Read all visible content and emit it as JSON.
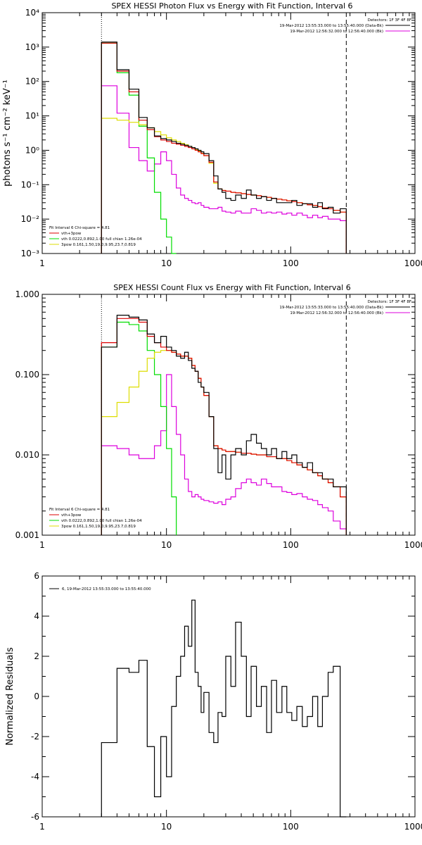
{
  "colors": {
    "data": "#000000",
    "vth_plus_3pow": "#dd0000",
    "vth": "#00dd00",
    "3pow": "#dddd00",
    "bk": "#dd00dd"
  },
  "chart_data": [
    {
      "type": "line",
      "title": "SPEX HESSI Photon Flux vs Energy with Fit Function, Interval 6",
      "ylabel": "photons s⁻¹ cm⁻² keV⁻¹",
      "xlabel": "",
      "xscale": "log",
      "yscale": "log",
      "xlim": [
        1,
        1000
      ],
      "ylim": [
        0.001,
        10000
      ],
      "xticks": [
        "1",
        "10",
        "100",
        "1000"
      ],
      "yticks": [
        "10⁻³",
        "10⁻²",
        "10⁻¹",
        "10⁰",
        "10¹",
        "10²",
        "10³",
        "10⁴"
      ],
      "vlines": [
        {
          "x": 3.0,
          "style": "dotted"
        },
        {
          "x": 280,
          "style": "dashed"
        }
      ],
      "legend_top_right": [
        "Detectors: 1F 3F 4F 8F",
        "19-Mar-2012 13:55:33.000 to 13:55:40.000 (Data-Bk)",
        "19-Mar-2012 12:56:32.000 to 12:56:40.000 (Bk)"
      ],
      "legend_bottom_left": [
        "Fit Interval 6   Chi-square = 4.81",
        "vth+3pow",
        "vth 0.0222,0.892,1.00  full chian 1.26e-04",
        "3pow 0.161,1.50,19.0,9.95,23.7,0.819"
      ],
      "series": [
        {
          "key": "data",
          "edges": [
            3.0,
            4.0,
            5.0,
            6.0,
            7.0,
            8.0,
            9.0,
            10.0,
            11.0,
            12.0,
            13.0,
            14.0,
            15.0,
            16.0,
            17.0,
            18.0,
            19.0,
            20.0,
            22.0,
            24.0,
            26.0,
            28.0,
            30.0,
            33.0,
            36.0,
            40.0,
            44.0,
            48.0,
            53.0,
            58.0,
            64.0,
            70.0,
            77.0,
            85.0,
            93.0,
            102.0,
            112.0,
            124.0,
            136.0,
            150.0,
            165.0,
            180.0,
            200.0,
            220.0,
            250.0,
            280.0
          ],
          "values": [
            1400,
            220,
            60,
            9,
            4.5,
            2.6,
            2.2,
            2.0,
            1.8,
            1.6,
            1.5,
            1.4,
            1.3,
            1.2,
            1.1,
            1.0,
            0.9,
            0.8,
            0.5,
            0.18,
            0.075,
            0.06,
            0.04,
            0.035,
            0.05,
            0.04,
            0.07,
            0.05,
            0.04,
            0.045,
            0.035,
            0.04,
            0.03,
            0.03,
            0.03,
            0.035,
            0.025,
            0.028,
            0.028,
            0.022,
            0.03,
            0.02,
            0.022,
            0.015,
            0.02
          ]
        },
        {
          "key": "vth_plus_3pow",
          "edges": [
            3.0,
            4.0,
            5.0,
            6.0,
            7.0,
            8.0,
            9.0,
            10.0,
            11.0,
            12.0,
            13.0,
            14.0,
            15.0,
            16.0,
            17.0,
            18.0,
            19.0,
            20.0,
            22.0,
            24.0,
            26.0,
            28.0,
            30.0,
            33.0,
            36.0,
            40.0,
            44.0,
            48.0,
            53.0,
            58.0,
            64.0,
            70.0,
            77.0,
            85.0,
            93.0,
            102.0,
            112.0,
            124.0,
            136.0,
            150.0,
            165.0,
            180.0,
            200.0,
            220.0,
            250.0,
            280.0
          ],
          "values": [
            1300,
            200,
            50,
            7.5,
            4.0,
            2.5,
            2.0,
            1.8,
            1.6,
            1.5,
            1.4,
            1.3,
            1.2,
            1.1,
            1.0,
            0.9,
            0.8,
            0.7,
            0.45,
            0.12,
            0.075,
            0.068,
            0.065,
            0.06,
            0.058,
            0.055,
            0.052,
            0.05,
            0.048,
            0.045,
            0.043,
            0.04,
            0.038,
            0.036,
            0.034,
            0.032,
            0.03,
            0.028,
            0.026,
            0.025,
            0.023,
            0.021,
            0.02,
            0.018,
            0.016
          ]
        },
        {
          "key": "vth",
          "edges": [
            3.0,
            4.0,
            5.0,
            6.0,
            7.0,
            8.0,
            9.0,
            10.0,
            11.0,
            12.0
          ],
          "values": [
            1300,
            180,
            40,
            5,
            0.6,
            0.06,
            0.01,
            0.003,
            0.001
          ]
        },
        {
          "key": "3pow",
          "edges": [
            3.0,
            4.0,
            5.0,
            6.0,
            7.0,
            8.0,
            9.0,
            10.0,
            11.0,
            12.0,
            13.0,
            14.0,
            15.0,
            16.0,
            17.0,
            18.0,
            19.0,
            20.0,
            22.0,
            24.0,
            26.0,
            28.0,
            30.0,
            33.0,
            36.0,
            40.0,
            44.0,
            48.0,
            53.0,
            58.0,
            64.0,
            70.0,
            77.0,
            85.0,
            93.0,
            102.0,
            112.0,
            124.0,
            136.0,
            150.0,
            165.0,
            180.0,
            200.0,
            220.0,
            250.0,
            280.0
          ],
          "values": [
            8.5,
            7.5,
            6.5,
            5.5,
            4.5,
            3.5,
            2.8,
            2.3,
            2.0,
            1.8,
            1.6,
            1.45,
            1.3,
            1.2,
            1.05,
            0.95,
            0.82,
            0.7,
            0.42,
            0.11,
            0.075,
            0.068,
            0.065,
            0.06,
            0.058,
            0.055,
            0.052,
            0.05,
            0.048,
            0.045,
            0.043,
            0.04,
            0.038,
            0.036,
            0.034,
            0.032,
            0.03,
            0.028,
            0.026,
            0.025,
            0.023,
            0.021,
            0.02,
            0.018,
            0.016
          ]
        },
        {
          "key": "bk",
          "edges": [
            3.0,
            4.0,
            5.0,
            6.0,
            7.0,
            8.0,
            9.0,
            10.0,
            11.0,
            12.0,
            13.0,
            14.0,
            15.0,
            16.0,
            17.0,
            18.0,
            19.0,
            20.0,
            22.0,
            24.0,
            26.0,
            28.0,
            30.0,
            33.0,
            36.0,
            40.0,
            44.0,
            48.0,
            53.0,
            58.0,
            64.0,
            70.0,
            77.0,
            85.0,
            93.0,
            102.0,
            112.0,
            124.0,
            136.0,
            150.0,
            165.0,
            180.0,
            200.0,
            220.0,
            250.0,
            280.0
          ],
          "values": [
            75,
            12,
            1.2,
            0.5,
            0.25,
            0.4,
            0.9,
            0.5,
            0.2,
            0.08,
            0.05,
            0.04,
            0.035,
            0.03,
            0.028,
            0.03,
            0.025,
            0.022,
            0.02,
            0.02,
            0.022,
            0.017,
            0.016,
            0.015,
            0.017,
            0.015,
            0.015,
            0.02,
            0.018,
            0.015,
            0.016,
            0.015,
            0.016,
            0.014,
            0.015,
            0.013,
            0.015,
            0.013,
            0.011,
            0.013,
            0.011,
            0.012,
            0.01,
            0.01,
            0.009
          ]
        }
      ]
    },
    {
      "type": "line",
      "title": "SPEX HESSI Count Flux vs Energy with Fit Function, Interval 6",
      "ylabel": "",
      "xlabel": "",
      "xscale": "log",
      "yscale": "log",
      "xlim": [
        1,
        1000
      ],
      "ylim": [
        0.001,
        1.0
      ],
      "xticks": [
        "1",
        "10",
        "100",
        "1000"
      ],
      "yticks": [
        "0.001",
        "0.010",
        "0.100",
        "1.000"
      ],
      "vlines": [
        {
          "x": 3.0,
          "style": "dotted"
        },
        {
          "x": 280,
          "style": "dashed"
        }
      ],
      "legend_top_right": [
        "Detectors: 1F 3F 4F 8F",
        "19-Mar-2012 13:55:33.000 to 13:55:40.000 (Data-Bk)",
        "19-Mar-2012 12:56:32.000 to 12:56:40.000 (Bk)"
      ],
      "legend_bottom_left": [
        "Fit Interval 6   Chi-square = 4.81",
        "vth+3pow",
        "vth 0.0222,0.892,1.00  full chian 1.26e-04",
        "3pow 0.161,1.50,19.0,9.95,23.7,0.819"
      ],
      "series": [
        {
          "key": "data",
          "edges": [
            3.0,
            4.0,
            5.0,
            6.0,
            7.0,
            8.0,
            9.0,
            10.0,
            11.0,
            12.0,
            13.0,
            14.0,
            15.0,
            16.0,
            17.0,
            18.0,
            19.0,
            20.0,
            22.0,
            24.0,
            26.0,
            28.0,
            30.0,
            33.0,
            36.0,
            40.0,
            44.0,
            48.0,
            53.0,
            58.0,
            64.0,
            70.0,
            77.0,
            85.0,
            93.0,
            102.0,
            112.0,
            124.0,
            136.0,
            150.0,
            165.0,
            180.0,
            200.0,
            220.0,
            250.0,
            280.0
          ],
          "values": [
            0.22,
            0.55,
            0.52,
            0.48,
            0.32,
            0.25,
            0.3,
            0.22,
            0.2,
            0.17,
            0.16,
            0.19,
            0.15,
            0.12,
            0.11,
            0.08,
            0.07,
            0.06,
            0.03,
            0.012,
            0.006,
            0.01,
            0.005,
            0.01,
            0.012,
            0.01,
            0.015,
            0.018,
            0.014,
            0.012,
            0.01,
            0.012,
            0.009,
            0.011,
            0.009,
            0.01,
            0.008,
            0.007,
            0.008,
            0.006,
            0.006,
            0.005,
            0.005,
            0.004,
            0.004
          ]
        },
        {
          "key": "vth_plus_3pow",
          "edges": [
            3.0,
            4.0,
            5.0,
            6.0,
            7.0,
            8.0,
            9.0,
            10.0,
            11.0,
            12.0,
            13.0,
            14.0,
            15.0,
            16.0,
            17.0,
            18.0,
            19.0,
            20.0,
            22.0,
            24.0,
            26.0,
            28.0,
            30.0,
            33.0,
            36.0,
            40.0,
            44.0,
            48.0,
            53.0,
            58.0,
            64.0,
            70.0,
            77.0,
            85.0,
            93.0,
            102.0,
            112.0,
            124.0,
            136.0,
            150.0,
            165.0,
            180.0,
            200.0,
            220.0,
            250.0,
            280.0
          ],
          "values": [
            0.25,
            0.5,
            0.5,
            0.45,
            0.3,
            0.25,
            0.22,
            0.2,
            0.19,
            0.18,
            0.17,
            0.17,
            0.16,
            0.13,
            0.11,
            0.09,
            0.07,
            0.055,
            0.03,
            0.013,
            0.012,
            0.0115,
            0.011,
            0.011,
            0.0108,
            0.0105,
            0.0105,
            0.0102,
            0.01,
            0.01,
            0.0095,
            0.0095,
            0.009,
            0.009,
            0.0085,
            0.008,
            0.0075,
            0.007,
            0.0065,
            0.006,
            0.0055,
            0.005,
            0.0045,
            0.004,
            0.003
          ]
        },
        {
          "key": "vth",
          "edges": [
            3.0,
            4.0,
            5.0,
            6.0,
            7.0,
            8.0,
            9.0,
            10.0,
            11.0,
            12.0
          ],
          "values": [
            0.22,
            0.45,
            0.42,
            0.35,
            0.2,
            0.1,
            0.04,
            0.012,
            0.003
          ]
        },
        {
          "key": "3pow",
          "edges": [
            3.0,
            4.0,
            5.0,
            6.0,
            7.0,
            8.0,
            9.0,
            10.0,
            11.0,
            12.0,
            13.0,
            14.0,
            15.0,
            16.0,
            17.0,
            18.0,
            19.0,
            20.0,
            22.0,
            24.0,
            26.0,
            28.0,
            30.0,
            33.0,
            36.0,
            40.0,
            44.0,
            48.0,
            53.0,
            58.0,
            64.0,
            70.0,
            77.0,
            85.0,
            93.0,
            102.0,
            112.0,
            124.0,
            136.0,
            150.0,
            165.0,
            180.0,
            200.0,
            220.0,
            250.0,
            280.0
          ],
          "values": [
            0.03,
            0.045,
            0.07,
            0.11,
            0.16,
            0.19,
            0.2,
            0.2,
            0.19,
            0.18,
            0.17,
            0.17,
            0.16,
            0.13,
            0.11,
            0.09,
            0.07,
            0.055,
            0.03,
            0.013,
            0.012,
            0.0115,
            0.011,
            0.011,
            0.0108,
            0.0105,
            0.0105,
            0.0102,
            0.01,
            0.01,
            0.0095,
            0.0095,
            0.009,
            0.009,
            0.0085,
            0.008,
            0.0075,
            0.007,
            0.0065,
            0.006,
            0.0055,
            0.005,
            0.0045,
            0.004,
            0.003
          ]
        },
        {
          "key": "bk",
          "edges": [
            3.0,
            4.0,
            5.0,
            6.0,
            7.0,
            8.0,
            9.0,
            10.0,
            11.0,
            12.0,
            13.0,
            14.0,
            15.0,
            16.0,
            17.0,
            18.0,
            19.0,
            20.0,
            22.0,
            24.0,
            26.0,
            28.0,
            30.0,
            33.0,
            36.0,
            40.0,
            44.0,
            48.0,
            53.0,
            58.0,
            64.0,
            70.0,
            77.0,
            85.0,
            93.0,
            102.0,
            112.0,
            124.0,
            136.0,
            150.0,
            165.0,
            180.0,
            200.0,
            220.0,
            250.0,
            280.0
          ],
          "values": [
            0.013,
            0.012,
            0.01,
            0.009,
            0.009,
            0.013,
            0.02,
            0.1,
            0.04,
            0.018,
            0.01,
            0.005,
            0.0035,
            0.003,
            0.0032,
            0.003,
            0.0028,
            0.0027,
            0.0026,
            0.0025,
            0.0026,
            0.0024,
            0.0028,
            0.003,
            0.0038,
            0.0045,
            0.005,
            0.0045,
            0.0042,
            0.005,
            0.0044,
            0.004,
            0.004,
            0.0035,
            0.0034,
            0.0032,
            0.0033,
            0.003,
            0.0028,
            0.0027,
            0.0024,
            0.0022,
            0.002,
            0.0015,
            0.0012
          ]
        }
      ]
    },
    {
      "type": "line",
      "title": "",
      "ylabel": "Normalized Residuals",
      "xlabel": "",
      "xscale": "log",
      "yscale": "linear",
      "xlim": [
        1,
        1000
      ],
      "ylim": [
        -6,
        6
      ],
      "xticks": [
        "1",
        "10",
        "100",
        "1000"
      ],
      "yticks": [
        "-6",
        "-4",
        "-2",
        "0",
        "2",
        "4",
        "6"
      ],
      "legend": [
        "6, 19-Mar-2012 13:55:33.000 to 13:55:40.000"
      ],
      "series": [
        {
          "key": "data",
          "edges": [
            3.0,
            4.0,
            5.0,
            6.0,
            7.0,
            8.0,
            9.0,
            10.0,
            11.0,
            12.0,
            13.0,
            14.0,
            15.0,
            16.0,
            17.0,
            18.0,
            19.0,
            20.0,
            22.0,
            24.0,
            26.0,
            28.0,
            30.0,
            33.0,
            36.0,
            40.0,
            44.0,
            48.0,
            53.0,
            58.0,
            64.0,
            70.0,
            77.0,
            85.0,
            93.0,
            102.0,
            112.0,
            124.0,
            136.0,
            150.0,
            165.0,
            180.0,
            200.0,
            220.0,
            250.0,
            280.0
          ],
          "values": [
            -2.3,
            1.4,
            1.2,
            1.8,
            -2.5,
            -5.0,
            -2.0,
            -4.0,
            -0.5,
            1.0,
            2.0,
            3.5,
            2.5,
            4.8,
            1.2,
            0.5,
            -0.8,
            0.2,
            -1.8,
            -2.3,
            -0.8,
            -1.0,
            2.0,
            0.5,
            3.7,
            2.0,
            -1.0,
            1.5,
            -0.5,
            0.5,
            -1.8,
            0.8,
            -0.8,
            0.5,
            -0.8,
            -1.2,
            -0.5,
            -1.5,
            -1.0,
            0.0,
            -1.5,
            0.0,
            1.2,
            1.5,
            -6.0
          ]
        }
      ]
    }
  ]
}
